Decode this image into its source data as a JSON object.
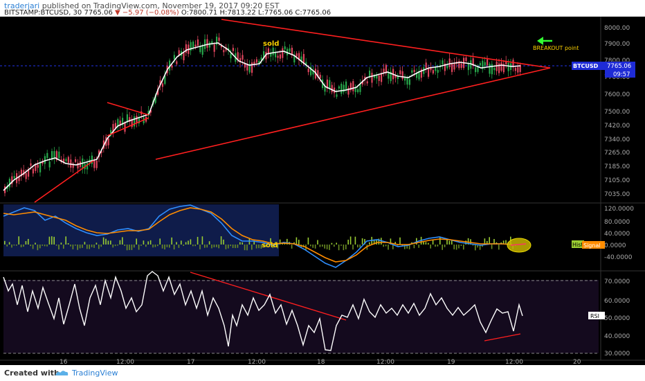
{
  "header": {
    "user": "traderjari",
    "published": " published on TradingView.com, November 19, 2017 09:20 EST",
    "symbol": "BITSTAMP:BTCUSD, 30",
    "last": "7765.06",
    "change": "−5.97 (−0.08%)",
    "open": "O:7800.71",
    "high": "H:7813.22",
    "low": "L:7765.06",
    "close": "C:7765.06"
  },
  "footer": {
    "created": "Created with",
    "brand": "TradingView"
  },
  "colors": {
    "up": "#27a84b",
    "down": "#e0455e",
    "trend": "#ff1f1f",
    "ma": "#ffffff",
    "macd": "#2f8fff",
    "signal": "#ff8c00",
    "rsi": "#ffffff",
    "annotation": "#ffd400",
    "price": "#1e2bd6"
  },
  "chart_data": {
    "type": "line",
    "price_axis_ticks": [
      "8000.00",
      "7900.00",
      "7800.00",
      "7700.00",
      "7600.00",
      "7500.00",
      "7420.00",
      "7340.00",
      "7265.00",
      "7185.00",
      "7105.00",
      "7035.00"
    ],
    "macd_axis_ticks": [
      "120.0000",
      "80.0000",
      "40.0000",
      "0.0000",
      "-40.0000"
    ],
    "rsi_axis_ticks": [
      "70.0000",
      "60.0000",
      "50.0000",
      "40.0000",
      "30.0000"
    ],
    "time_ticks": [
      "16",
      "12:00",
      "17",
      "12:00",
      "18",
      "12:00",
      "19",
      "12:00",
      "20"
    ],
    "price_label": {
      "symbol": "BTCUSD",
      "value": "7765.06",
      "countdown": "09:57"
    },
    "indicator_labels": {
      "hist": "Hist",
      "signal": "Signal",
      "rsi": "RSI"
    },
    "annotations": {
      "sold_price": "sold",
      "sold_macd": "sold",
      "breakout": "BREAKOUT point"
    }
  }
}
